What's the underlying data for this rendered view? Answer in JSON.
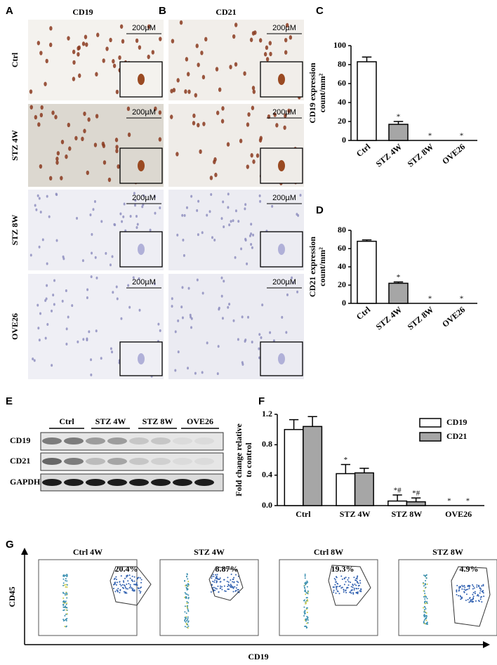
{
  "panel_labels": [
    "A",
    "B",
    "C",
    "D",
    "E",
    "F",
    "G"
  ],
  "histology": {
    "columns": [
      "CD19",
      "CD21"
    ],
    "rows": [
      "Ctrl",
      "STZ 4W",
      "STZ 8W",
      "OVE26"
    ],
    "scale_bar": "200µM"
  },
  "western_blot": {
    "groups": [
      "Ctrl",
      "STZ 4W",
      "STZ 8W",
      "OVE26"
    ],
    "bands": [
      "CD19",
      "CD21",
      "GAPDH"
    ]
  },
  "flow": {
    "plots": [
      {
        "title": "Ctrl 4W",
        "percent": "20.4%"
      },
      {
        "title": "STZ 4W",
        "percent": "8.87%"
      },
      {
        "title": "Ctrl 8W",
        "percent": "19.3%"
      },
      {
        "title": "STZ 8W",
        "percent": "4.9%"
      }
    ],
    "y_label": "CD45",
    "x_label": "CD19"
  },
  "chart_data": [
    {
      "type": "bar",
      "y_label": [
        "CD19 expression",
        "count/mm²"
      ],
      "categories": [
        "Ctrl",
        "STZ 4W",
        "STZ 8W",
        "OVE26"
      ],
      "values": [
        83,
        17,
        0,
        0
      ],
      "errors": [
        5,
        3,
        null,
        null
      ],
      "annotations": [
        null,
        "*",
        "*",
        "*"
      ],
      "colors": [
        "#ffffff",
        "#a6a6a6",
        "#a6a6a6",
        "#a6a6a6"
      ],
      "ylim": [
        0,
        100
      ],
      "yticks": [
        0,
        20,
        40,
        60,
        80,
        100
      ]
    },
    {
      "type": "bar",
      "y_label": [
        "CD21 expression",
        "count/mm²"
      ],
      "categories": [
        "Ctrl",
        "STZ 4W",
        "STZ 8W",
        "OVE26"
      ],
      "values": [
        68,
        22,
        0,
        0
      ],
      "errors": [
        1.5,
        1.5,
        null,
        null
      ],
      "annotations": [
        null,
        "*",
        "*",
        "*"
      ],
      "colors": [
        "#ffffff",
        "#a6a6a6",
        "#a6a6a6",
        "#a6a6a6"
      ],
      "ylim": [
        0,
        80
      ],
      "yticks": [
        0,
        20,
        40,
        60,
        80
      ]
    },
    {
      "type": "bar",
      "y_label": [
        "Fold change relative",
        "to control"
      ],
      "categories": [
        "Ctrl",
        "STZ 4W",
        "STZ 8W",
        "OVE26"
      ],
      "series": [
        {
          "name": "CD19",
          "color": "#ffffff",
          "values": [
            1.0,
            0.42,
            0.06,
            0
          ],
          "errors": [
            0.13,
            0.12,
            0.08,
            null
          ],
          "annotations": [
            null,
            "*",
            "*#",
            "*"
          ]
        },
        {
          "name": "CD21",
          "color": "#a6a6a6",
          "values": [
            1.04,
            0.43,
            0.05,
            0
          ],
          "errors": [
            0.13,
            0.06,
            0.05,
            null
          ],
          "annotations": [
            null,
            null,
            "*#",
            "*"
          ]
        }
      ],
      "ylim": [
        0,
        1.2
      ],
      "yticks": [
        {
          "value": 0,
          "label": "0.0"
        },
        0.4,
        0.8,
        1.2
      ],
      "legend": "top-right"
    }
  ]
}
